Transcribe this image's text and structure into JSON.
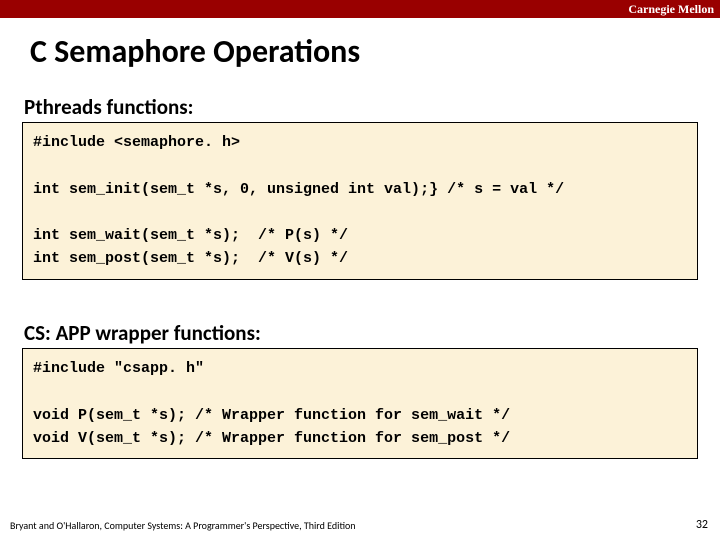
{
  "brand": "Carnegie Mellon",
  "title": "C Semaphore Operations",
  "section1_heading": "Pthreads functions:",
  "code1": "#include <semaphore. h>\n\nint sem_init(sem_t *s, 0, unsigned int val);} /* s = val */\n\nint sem_wait(sem_t *s);  /* P(s) */\nint sem_post(sem_t *s);  /* V(s) */",
  "section2_heading": "CS: APP wrapper functions:",
  "code2": "#include \"csapp. h\"\n\nvoid P(sem_t *s); /* Wrapper function for sem_wait */\nvoid V(sem_t *s); /* Wrapper function for sem_post */",
  "footer": "Bryant and O'Hallaron, Computer Systems: A Programmer's Perspective, Third Edition",
  "page_number": "32",
  "colors": {
    "topbar": "#990000",
    "codebox_bg": "#fcf2d8",
    "codebox_border": "#000000",
    "text": "#000000",
    "brand_text": "#ffffff"
  }
}
